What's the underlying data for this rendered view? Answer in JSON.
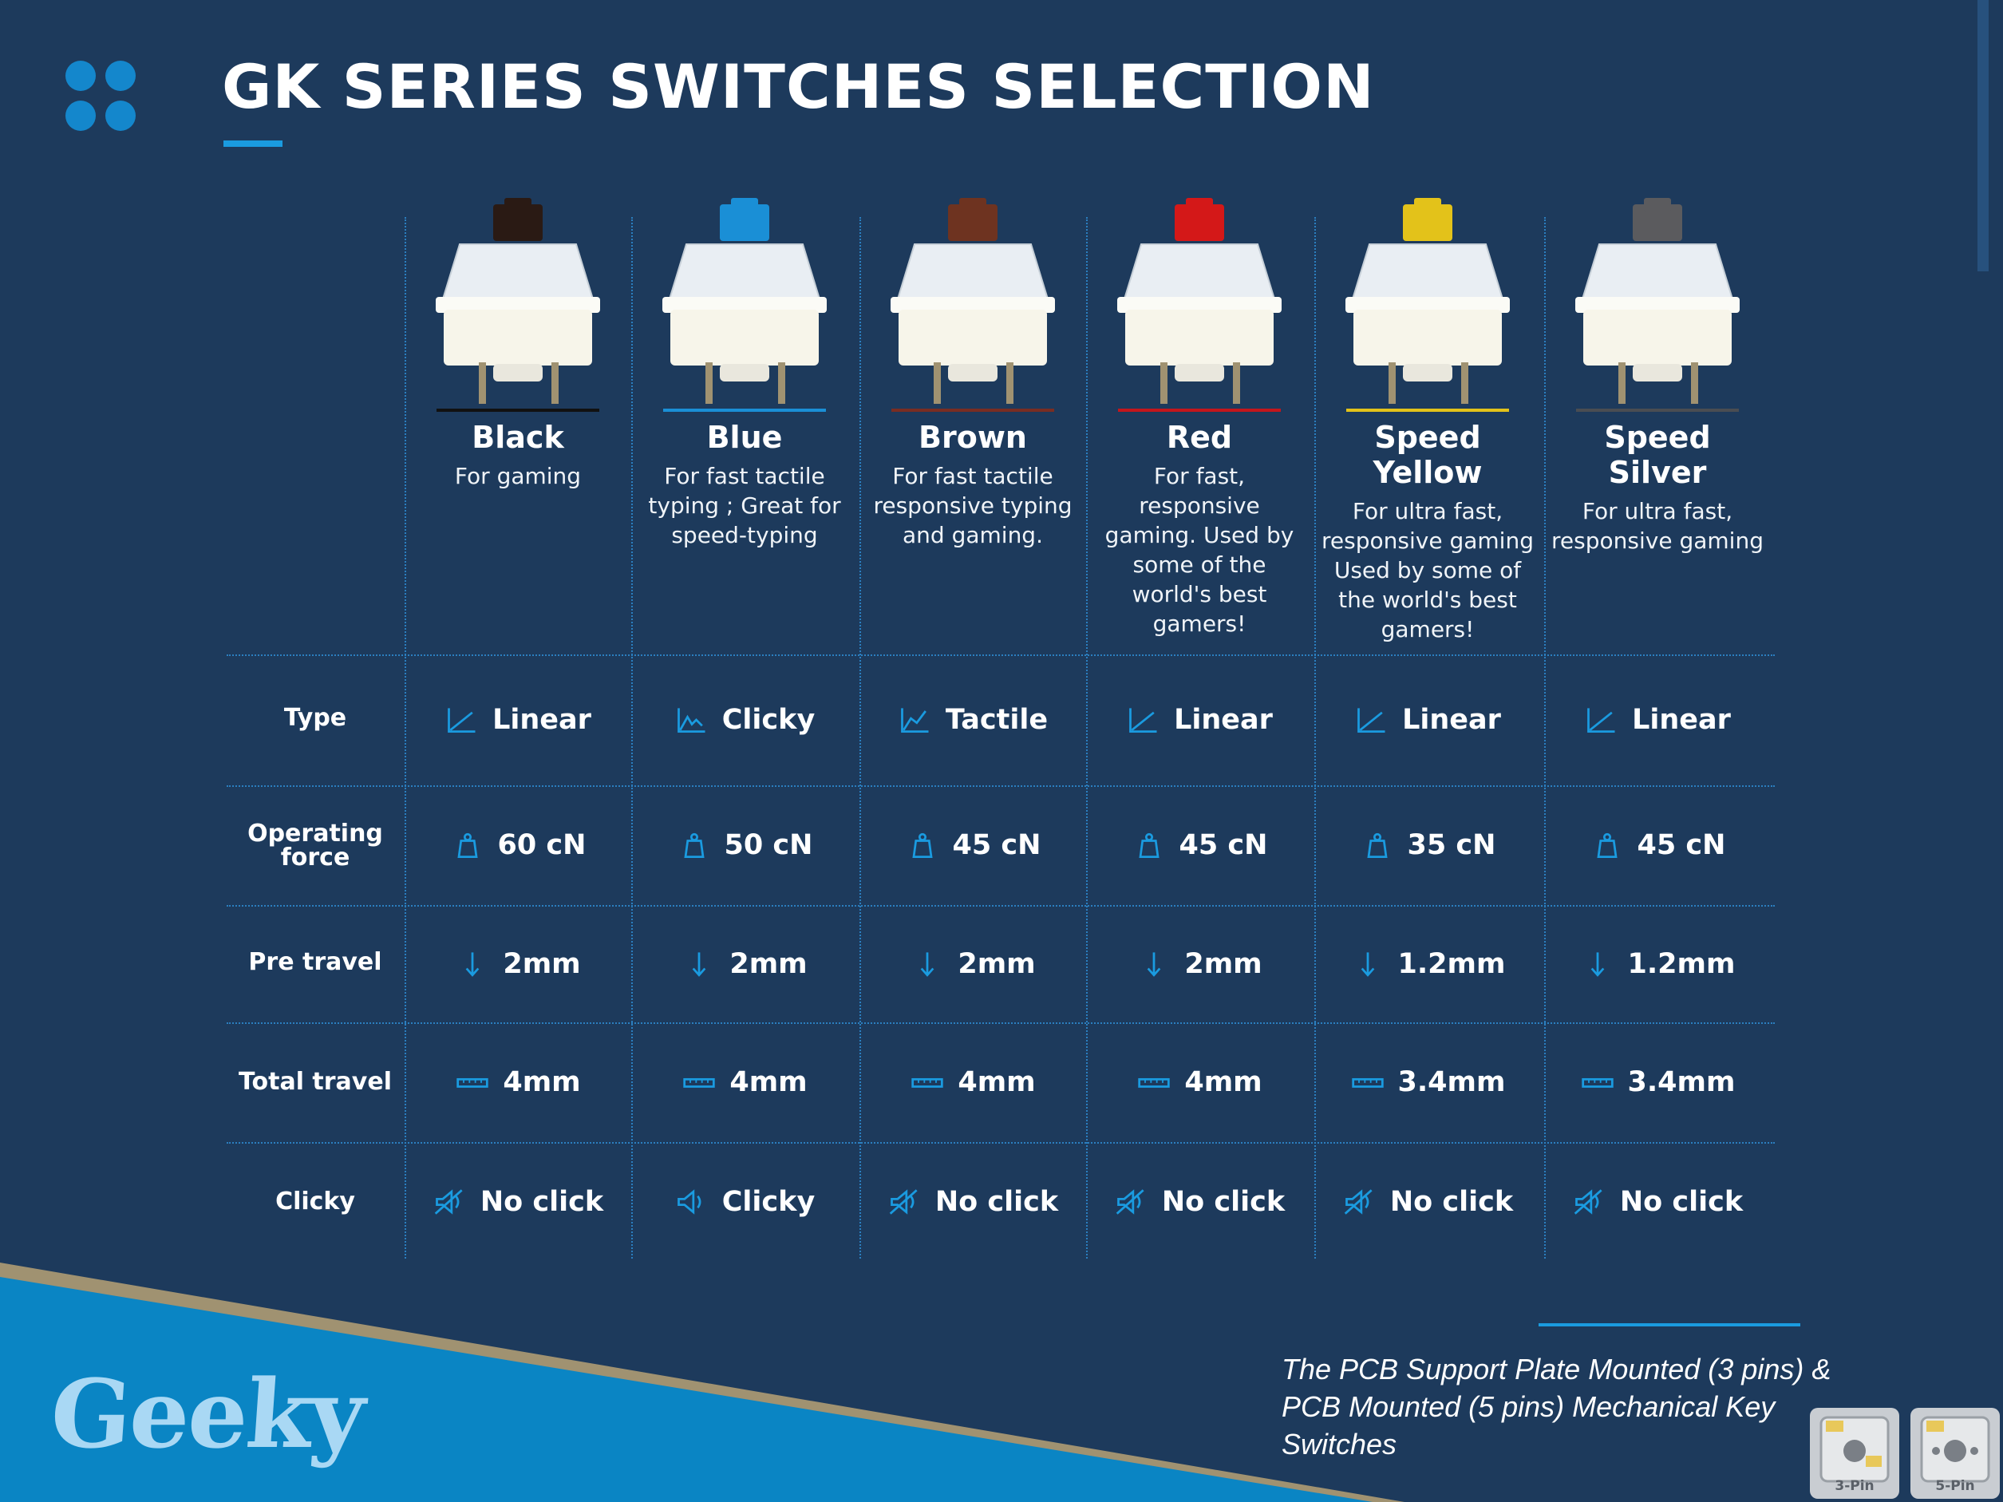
{
  "header": {
    "title": "GK SERIES SWITCHES SELECTION"
  },
  "colors": {
    "background": "#1d3a5c",
    "accent": "#1a9be0",
    "band_blue": "#0a85c4",
    "band_gold": "#a09271"
  },
  "switches": [
    {
      "name": "Black",
      "desc": "For gaming",
      "stem_color": "#2a1a14",
      "line_color": "#111111",
      "type": "Linear",
      "type_icon": "linear-graph-icon",
      "force": "60 cN",
      "pre_travel": "2mm",
      "total_travel": "4mm",
      "clicky": "No click",
      "clicky_icon": "speaker-muted-icon"
    },
    {
      "name": "Blue",
      "desc": "For fast tactile typing ; Great for speed-typing",
      "stem_color": "#1a8fd6",
      "line_color": "#1a8fd6",
      "type": "Clicky",
      "type_icon": "clicky-graph-icon",
      "force": "50 cN",
      "pre_travel": "2mm",
      "total_travel": "4mm",
      "clicky": "Clicky",
      "clicky_icon": "speaker-icon"
    },
    {
      "name": "Brown",
      "desc": "For fast tactile responsive typing and gaming.",
      "stem_color": "#6e3320",
      "line_color": "#7a2d22",
      "type": "Tactile",
      "type_icon": "tactile-graph-icon",
      "force": "45 cN",
      "pre_travel": "2mm",
      "total_travel": "4mm",
      "clicky": "No click",
      "clicky_icon": "speaker-muted-icon"
    },
    {
      "name": "Red",
      "desc": "For fast, responsive gaming. Used by some of the world's best gamers!",
      "stem_color": "#d41818",
      "line_color": "#c4161c",
      "type": "Linear",
      "type_icon": "linear-graph-icon",
      "force": "45 cN",
      "pre_travel": "2mm",
      "total_travel": "4mm",
      "clicky": "No click",
      "clicky_icon": "speaker-muted-icon"
    },
    {
      "name": "Speed Yellow",
      "desc": "For ultra fast, responsive gaming Used by some of the world's best gamers!",
      "stem_color": "#e3c21a",
      "line_color": "#e3c21a",
      "type": "Linear",
      "type_icon": "linear-graph-icon",
      "force": "35 cN",
      "pre_travel": "1.2mm",
      "total_travel": "3.4mm",
      "clicky": "No click",
      "clicky_icon": "speaker-muted-icon"
    },
    {
      "name": "Speed Silver",
      "desc": "For ultra fast, responsive gaming",
      "stem_color": "#5b5b5e",
      "line_color": "#4a4d52",
      "type": "Linear",
      "type_icon": "linear-graph-icon",
      "force": "45 cN",
      "pre_travel": "1.2mm",
      "total_travel": "3.4mm",
      "clicky": "No click",
      "clicky_icon": "speaker-muted-icon"
    }
  ],
  "rows": {
    "type": "Type",
    "force": "Operating force",
    "pre_travel": "Pre travel",
    "total_travel": "Total travel",
    "clicky": "Clicky"
  },
  "brand": {
    "wordmark": "Geeky"
  },
  "footer": {
    "text": "The PCB Support Plate Mounted (3 pins) & PCB Mounted (5 pins) Mechanical Key Switches",
    "pin3_label": "3-Pin",
    "pin5_label": "5-Pin"
  }
}
